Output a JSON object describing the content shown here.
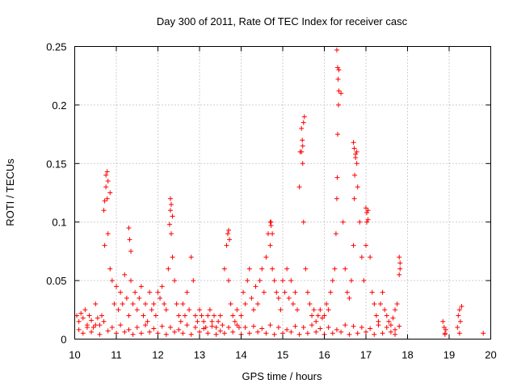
{
  "chart_data": {
    "type": "scatter",
    "title": "Day 300 of 2011, Rate Of TEC Index for receiver casc",
    "xlabel": "GPS time / hours",
    "ylabel": "ROTI / TECUs",
    "xlim": [
      10,
      20
    ],
    "ylim": [
      0,
      0.25
    ],
    "xticks": [
      10,
      11,
      12,
      13,
      14,
      15,
      16,
      17,
      18,
      19,
      20
    ],
    "xtick_labels": [
      "10",
      "11",
      "12",
      "13",
      "14",
      "15",
      "16",
      "17",
      "18",
      "19",
      "20"
    ],
    "yticks": [
      0,
      0.05,
      0.1,
      0.15,
      0.2,
      0.25
    ],
    "ytick_labels": [
      "0",
      "0.05",
      "0.1",
      "0.15",
      "0.2",
      "0.25"
    ],
    "grid": true,
    "marker": "+",
    "color": "#ff0000",
    "series": [
      {
        "name": "ROTI",
        "x": [
          10.05,
          10.1,
          10.15,
          10.2,
          10.25,
          10.3,
          10.35,
          10.4,
          10.45,
          10.5,
          10.55,
          10.6,
          10.65,
          10.7,
          10.72,
          10.75,
          10.78,
          10.8,
          10.85,
          10.9,
          10.95,
          11.0,
          11.05,
          11.1,
          11.15,
          11.2,
          11.25,
          11.3,
          11.35,
          11.4,
          11.45,
          11.5,
          11.55,
          11.6,
          11.65,
          11.7,
          11.75,
          11.8,
          11.85,
          11.9,
          11.95,
          12.0,
          12.05,
          12.1,
          12.15,
          12.2,
          12.25,
          12.3,
          12.32,
          12.35,
          12.4,
          12.45,
          12.5,
          12.55,
          12.6,
          12.65,
          12.7,
          12.75,
          12.8,
          12.85,
          12.9,
          12.95,
          13.0,
          13.05,
          13.1,
          13.15,
          13.2,
          13.25,
          13.3,
          13.35,
          13.4,
          13.45,
          13.5,
          13.55,
          13.6,
          13.65,
          13.68,
          13.7,
          13.75,
          13.8,
          13.85,
          13.9,
          13.95,
          14.0,
          14.05,
          14.1,
          14.15,
          14.2,
          14.25,
          14.3,
          14.35,
          14.4,
          14.45,
          14.5,
          14.55,
          14.6,
          14.65,
          14.7,
          14.72,
          14.75,
          14.8,
          14.85,
          14.9,
          14.95,
          15.0,
          15.05,
          15.1,
          15.15,
          15.2,
          15.25,
          15.3,
          15.35,
          15.4,
          15.42,
          15.45,
          15.48,
          15.5,
          15.55,
          15.6,
          15.65,
          15.7,
          15.75,
          15.8,
          15.85,
          15.9,
          15.95,
          16.0,
          16.05,
          16.1,
          16.15,
          16.2,
          16.25,
          16.28,
          16.3,
          16.32,
          16.35,
          16.4,
          16.45,
          16.5,
          16.55,
          16.6,
          16.65,
          16.7,
          16.72,
          16.75,
          16.78,
          16.8,
          16.85,
          16.9,
          16.95,
          17.0,
          17.02,
          17.05,
          17.1,
          17.15,
          17.2,
          17.25,
          17.3,
          17.35,
          17.4,
          17.45,
          17.5,
          17.55,
          17.6,
          17.65,
          17.7,
          17.75,
          17.8,
          17.82,
          18.85,
          18.88,
          18.9,
          18.92,
          19.2,
          19.22,
          19.25,
          19.27,
          19.3,
          19.82,
          10.1,
          10.3,
          10.5,
          10.7,
          10.9,
          11.1,
          11.3,
          11.5,
          11.7,
          11.9,
          12.1,
          12.3,
          12.5,
          12.7,
          12.9,
          13.1,
          13.3,
          13.5,
          13.7,
          13.9,
          14.1,
          14.3,
          14.5,
          14.7,
          14.9,
          15.1,
          15.3,
          15.5,
          15.7,
          15.9,
          16.1,
          16.3,
          16.5,
          16.7,
          16.9,
          17.1,
          17.3,
          17.5,
          17.7,
          17.8,
          10.2,
          10.4,
          10.6,
          10.8,
          11.0,
          11.2,
          11.4,
          11.6,
          11.8,
          12.0,
          12.2,
          12.4,
          12.6,
          12.8,
          13.0,
          13.2,
          13.4,
          13.6,
          13.8,
          14.0,
          14.2,
          14.4,
          14.6,
          14.8,
          15.0,
          15.2,
          15.4,
          15.6,
          15.8,
          16.0,
          16.2,
          16.4,
          16.6,
          16.8,
          17.0,
          17.2,
          17.4,
          17.6,
          17.7,
          18.9,
          19.25,
          10.75,
          10.78,
          10.8,
          10.85,
          10.72,
          11.3,
          11.32,
          11.35,
          12.3,
          12.32,
          12.35,
          12.28,
          13.7,
          13.72,
          14.7,
          14.72,
          14.75,
          15.45,
          15.47,
          15.5,
          15.52,
          15.48,
          16.3,
          16.32,
          16.33,
          16.35,
          16.34,
          16.31,
          16.7,
          16.72,
          16.75,
          16.78,
          16.73,
          17.0,
          17.02,
          17.05,
          17.8,
          17.82
        ],
        "y": [
          0.02,
          0.015,
          0.022,
          0.018,
          0.025,
          0.012,
          0.02,
          0.016,
          0.01,
          0.03,
          0.018,
          0.012,
          0.02,
          0.11,
          0.08,
          0.13,
          0.12,
          0.09,
          0.06,
          0.05,
          0.03,
          0.045,
          0.025,
          0.04,
          0.03,
          0.055,
          0.035,
          0.02,
          0.05,
          0.03,
          0.04,
          0.025,
          0.035,
          0.045,
          0.02,
          0.03,
          0.015,
          0.04,
          0.025,
          0.03,
          0.02,
          0.04,
          0.035,
          0.045,
          0.03,
          0.025,
          0.06,
          0.11,
          0.09,
          0.07,
          0.05,
          0.03,
          0.02,
          0.015,
          0.03,
          0.02,
          0.04,
          0.025,
          0.07,
          0.05,
          0.02,
          0.015,
          0.025,
          0.02,
          0.015,
          0.01,
          0.02,
          0.025,
          0.015,
          0.02,
          0.01,
          0.015,
          0.02,
          0.012,
          0.06,
          0.08,
          0.09,
          0.05,
          0.03,
          0.02,
          0.015,
          0.025,
          0.01,
          0.02,
          0.04,
          0.03,
          0.05,
          0.06,
          0.035,
          0.025,
          0.045,
          0.03,
          0.05,
          0.06,
          0.04,
          0.07,
          0.09,
          0.08,
          0.1,
          0.06,
          0.05,
          0.04,
          0.035,
          0.025,
          0.05,
          0.04,
          0.06,
          0.035,
          0.05,
          0.03,
          0.04,
          0.025,
          0.13,
          0.16,
          0.18,
          0.15,
          0.1,
          0.06,
          0.04,
          0.03,
          0.02,
          0.025,
          0.015,
          0.02,
          0.025,
          0.018,
          0.02,
          0.03,
          0.025,
          0.04,
          0.05,
          0.06,
          0.09,
          0.12,
          0.175,
          0.23,
          0.21,
          0.1,
          0.06,
          0.04,
          0.035,
          0.05,
          0.08,
          0.12,
          0.155,
          0.16,
          0.13,
          0.1,
          0.07,
          0.05,
          0.08,
          0.1,
          0.11,
          0.07,
          0.04,
          0.03,
          0.02,
          0.015,
          0.03,
          0.04,
          0.025,
          0.02,
          0.015,
          0.012,
          0.018,
          0.025,
          0.03,
          0.055,
          0.065,
          0.015,
          0.01,
          0.005,
          0.008,
          0.01,
          0.02,
          0.025,
          0.015,
          0.028,
          0.005,
          0.008,
          0.01,
          0.012,
          0.015,
          0.01,
          0.012,
          0.008,
          0.01,
          0.012,
          0.009,
          0.011,
          0.01,
          0.008,
          0.012,
          0.01,
          0.009,
          0.011,
          0.007,
          0.01,
          0.012,
          0.01,
          0.011,
          0.009,
          0.012,
          0.01,
          0.008,
          0.011,
          0.01,
          0.012,
          0.009,
          0.01,
          0.008,
          0.012,
          0.011,
          0.01,
          0.009,
          0.012,
          0.01,
          0.008,
          0.011,
          0.005,
          0.006,
          0.004,
          0.007,
          0.005,
          0.006,
          0.004,
          0.005,
          0.006,
          0.005,
          0.004,
          0.006,
          0.005,
          0.004,
          0.006,
          0.005,
          0.004,
          0.005,
          0.006,
          0.004,
          0.005,
          0.006,
          0.005,
          0.004,
          0.005,
          0.006,
          0.004,
          0.005,
          0.006,
          0.004,
          0.005,
          0.006,
          0.004,
          0.005,
          0.006,
          0.004,
          0.005,
          0.006,
          0.004,
          0.004,
          0.005,
          0.14,
          0.143,
          0.135,
          0.125,
          0.118,
          0.095,
          0.085,
          0.075,
          0.12,
          0.115,
          0.105,
          0.098,
          0.093,
          0.085,
          0.1,
          0.097,
          0.09,
          0.16,
          0.17,
          0.185,
          0.19,
          0.165,
          0.247,
          0.232,
          0.222,
          0.212,
          0.2,
          0.138,
          0.168,
          0.163,
          0.158,
          0.15,
          0.14,
          0.112,
          0.108,
          0.102,
          0.07,
          0.06
        ]
      }
    ]
  }
}
